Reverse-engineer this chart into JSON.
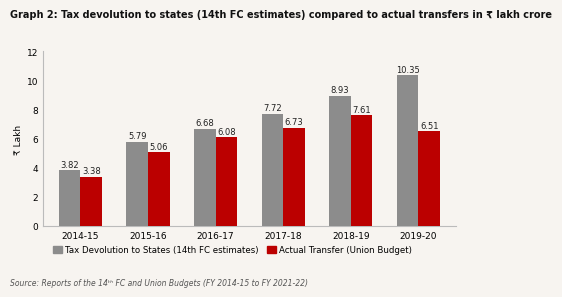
{
  "title": "Graph 2: Tax devolution to states (14th FC estimates) compared to actual transfers in ₹ lakh crore",
  "categories": [
    "2014-15",
    "2015-16",
    "2016-17",
    "2017-18",
    "2018-19",
    "2019-20"
  ],
  "series1_values": [
    3.82,
    5.79,
    6.68,
    7.72,
    8.93,
    10.35
  ],
  "series2_values": [
    3.38,
    5.06,
    6.08,
    6.73,
    7.61,
    6.51
  ],
  "series1_label": "Tax Devolution to States (14th FC estimates)",
  "series2_label": "Actual Transfer (Union Budget)",
  "series1_color": "#8c8c8c",
  "series2_color": "#bb0000",
  "ylabel": "₹ Lakh",
  "ylim": [
    0,
    12
  ],
  "yticks": [
    0,
    2,
    4,
    6,
    8,
    10,
    12
  ],
  "source": "Source: Reports of the 14ᵗʰ FC and Union Budgets (FY 2014-15 to FY 2021-22)",
  "background_color": "#f7f4f0",
  "bar_width": 0.32,
  "title_fontsize": 7.0,
  "axis_fontsize": 6.5,
  "label_fontsize": 6.0,
  "legend_fontsize": 6.2,
  "source_fontsize": 5.5
}
